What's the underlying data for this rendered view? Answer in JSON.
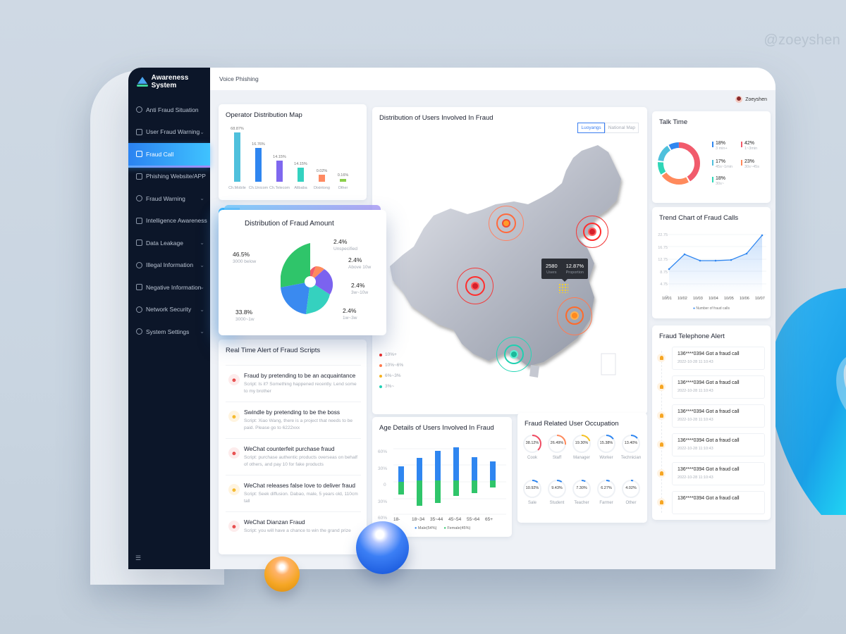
{
  "watermark": "@zoeyshen",
  "app": {
    "title": "Awareness System",
    "page": "Voice Phishing",
    "user": "Zoeyshen"
  },
  "sidebar": {
    "items": [
      {
        "label": "Anti Fraud Situation",
        "icon": "shield-icon",
        "chevron": false
      },
      {
        "label": "User Fraud Warning",
        "icon": "alarm-icon",
        "chevron": true
      },
      {
        "label": "Fraud Call",
        "icon": "phone-icon",
        "chevron": false,
        "active": true
      },
      {
        "label": "Phishing Website/APP",
        "icon": "browser-icon",
        "chevron": false
      },
      {
        "label": "Fraud Warning",
        "icon": "warning-circle-icon",
        "chevron": true
      },
      {
        "label": "Intelligence Awareness",
        "icon": "monitor-icon",
        "chevron": false
      },
      {
        "label": "Data Leakage",
        "icon": "briefcase-icon",
        "chevron": true
      },
      {
        "label": "Illegal Information",
        "icon": "location-icon",
        "chevron": true
      },
      {
        "label": "Negative Information",
        "icon": "chart-box-icon",
        "chevron": true
      },
      {
        "label": "Network Security",
        "icon": "globe-icon",
        "chevron": true
      },
      {
        "label": "System Settings",
        "icon": "gear-icon",
        "chevron": true
      }
    ],
    "footer_icon": "menu-icon"
  },
  "operator": {
    "title": "Operator Distribution Map",
    "bars": [
      {
        "label": "Ch.Mobile",
        "value": "68.87%",
        "h": 70,
        "color": "#4fc0dc"
      },
      {
        "label": "Ch.Unicom",
        "value": "16.76%",
        "h": 48,
        "color": "#2f86f0"
      },
      {
        "label": "Ch.Telecom",
        "value": "14.15%",
        "h": 30,
        "color": "#7f68ef"
      },
      {
        "label": "Alibaba",
        "value": "14.15%",
        "h": 20,
        "color": "#34d2c0"
      },
      {
        "label": "Dixintong",
        "value": "0.02%",
        "h": 10,
        "color": "#ff8a62"
      },
      {
        "label": "Other",
        "value": "0.16%",
        "h": 4,
        "color": "#8bcf4c"
      }
    ]
  },
  "amount": {
    "title": "Distribution of Fraud Amount",
    "slices": [
      {
        "pct": "46.5%",
        "label": "3000 below",
        "color": "#2fc56a"
      },
      {
        "pct": "33.8%",
        "label": "3000~1w",
        "color": "#3a8af0"
      },
      {
        "pct": "2.4%",
        "label": "Unspecified",
        "color": "#f15b6c"
      },
      {
        "pct": "2.4%",
        "label": "Above 10w",
        "color": "#ff8a5c"
      },
      {
        "pct": "2.4%",
        "label": "3w~10w",
        "color": "#7b63ef"
      },
      {
        "pct": "2.4%",
        "label": "1w~3w",
        "color": "#35d1bf"
      }
    ]
  },
  "scripts": {
    "title": "Real Time Alert of Fraud Scripts",
    "items": [
      {
        "title": "Fraud by pretending to be an acquaintance",
        "script": "Script: Is it? Something happened recently. Lend some to my brother",
        "level": "red"
      },
      {
        "title": "Swindle by pretending to be the boss",
        "script": "Script: Xiao Wang, there is a project that needs to be paid. Please go to 6222xxx",
        "level": "yellow"
      },
      {
        "title": "WeChat counterfeit purchase fraud",
        "script": "Script: purchase authentic products overseas on behalf of others, and pay 10 for fake products",
        "level": "red"
      },
      {
        "title": "WeChat releases false love to deliver fraud",
        "script": "Script: Seek diffusion. Dabao, male, 5 years old, 110cm tall",
        "level": "yellow"
      },
      {
        "title": "WeChat Dianzan Fraud",
        "script": "Script: you will have a chance to win the grand prize",
        "level": "red"
      }
    ]
  },
  "map": {
    "title": "Distribution of Users Involved In Fraud",
    "tabs": [
      "Luoyangs",
      "National Map"
    ],
    "active_tab": 0,
    "tooltip": {
      "users": "2580",
      "users_label": "Users",
      "proportion": "12.87%",
      "proportion_label": "Proportion"
    },
    "legend": [
      {
        "label": "10%+",
        "color": "#e82c2c"
      },
      {
        "label": "10%~6%",
        "color": "#ff7b4f"
      },
      {
        "label": "6%~3%",
        "color": "#f6b11f"
      },
      {
        "label": "3%~",
        "color": "#21d1b5"
      }
    ]
  },
  "talk": {
    "title": "Talk Time",
    "legend": [
      {
        "pct": "18%",
        "label": "3 min+",
        "color": "#2f86f0"
      },
      {
        "pct": "42%",
        "label": "1~3min",
        "color": "#f15b6c"
      },
      {
        "pct": "17%",
        "label": "45s~1min",
        "color": "#4fc0dc"
      },
      {
        "pct": "23%",
        "label": "30s~45s",
        "color": "#ff8a5c"
      },
      {
        "pct": "18%",
        "label": "30s~",
        "color": "#2fd6b7"
      }
    ]
  },
  "trend": {
    "title": "Trend Chart of Fraud Calls",
    "legend": "Number of fraud calls"
  },
  "chart_data": {
    "type": "line",
    "title": "Trend Chart of Fraud Calls",
    "x": [
      "10/01",
      "10/02",
      "10/03",
      "10/04",
      "10/05",
      "10/06",
      "10/07"
    ],
    "series": [
      {
        "name": "Number of fraud calls",
        "values": [
          7.5,
          13.8,
          10.5,
          10.5,
          10.5,
          14.0,
          22.5
        ]
      }
    ],
    "yticks": [
      "0",
      "4.75",
      "8.75",
      "12.75",
      "16.75",
      "22.75"
    ],
    "ylim": [
      0,
      22.75
    ],
    "grid": true,
    "legend_position": "bottom"
  },
  "age": {
    "title": "Age Details of Users Involved In Fraud",
    "yticks": [
      "60%",
      "30%",
      "0",
      "30%",
      "60%"
    ],
    "categories": [
      "18-",
      "18~34",
      "35~44",
      "45~54",
      "55~64",
      "65+"
    ],
    "male": [
      22,
      40,
      52,
      55,
      38,
      28
    ],
    "female": [
      20,
      34,
      30,
      18,
      12,
      3
    ],
    "legend": [
      "Male(54%)",
      "Female(45%)"
    ]
  },
  "occupation": {
    "title": "Fraud Related User Occupation",
    "items": [
      {
        "pct": "38.12%",
        "label": "Cook",
        "color": "#f04b62",
        "deg": 137
      },
      {
        "pct": "26.49%",
        "label": "Staff",
        "color": "#ff8a5c",
        "deg": 95
      },
      {
        "pct": "19.30%",
        "label": "Manager",
        "color": "#f6c223",
        "deg": 70
      },
      {
        "pct": "15.38%",
        "label": "Worker",
        "color": "#2f86f0",
        "deg": 55
      },
      {
        "pct": "13.40%",
        "label": "Technician",
        "color": "#2f86f0",
        "deg": 48
      },
      {
        "pct": "10.92%",
        "label": "Sale",
        "color": "#2f86f0",
        "deg": 39
      },
      {
        "pct": "9.43%",
        "label": "Student",
        "color": "#2f86f0",
        "deg": 34
      },
      {
        "pct": "7.30%",
        "label": "Teacher",
        "color": "#2f86f0",
        "deg": 26
      },
      {
        "pct": "6.27%",
        "label": "Farmer",
        "color": "#2f86f0",
        "deg": 23
      },
      {
        "pct": "4.02%",
        "label": "Other",
        "color": "#2f86f0",
        "deg": 15
      }
    ]
  },
  "telephone": {
    "title": "Fraud Telephone Alert",
    "items": [
      {
        "text": "136****0394 Got a fraud call",
        "time": "2022-10-28 11:10:43"
      },
      {
        "text": "136****0394 Got a fraud call",
        "time": "2022-10-28 11:10:43"
      },
      {
        "text": "136****0394 Got a fraud call",
        "time": "2022-10-28 11:10:43"
      },
      {
        "text": "136****0394 Got a fraud call",
        "time": "2022-10-28 11:10:43"
      },
      {
        "text": "136****0394 Got a fraud call",
        "time": "2022-10-28 11:10:43"
      },
      {
        "text": "136****0394 Got a fraud call",
        "time": ""
      }
    ]
  }
}
